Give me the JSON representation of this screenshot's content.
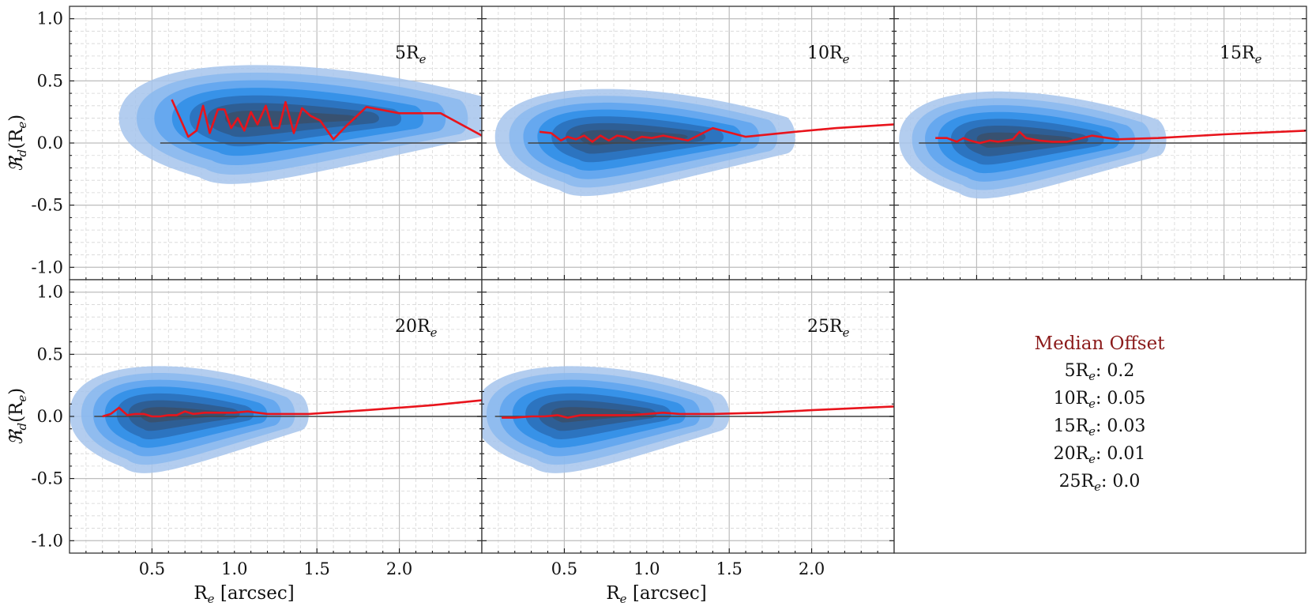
{
  "chart_data": {
    "type": "line",
    "x_ticks": [
      "0.5",
      "1.0",
      "1.5",
      "2.0"
    ],
    "y_ticks": [
      "1.0",
      "0.5",
      "0.0",
      "-0.5",
      "-1.0"
    ],
    "xlabel_main": "R",
    "xlabel_sub": "e",
    "xlabel_unit": " [arcsec]",
    "ylabel_main": "ℜ",
    "ylabel_sub": "d",
    "ylabel_arg_open": "(R",
    "ylabel_arg_sub": "e",
    "ylabel_arg_close": ")",
    "xlim": [
      0.0,
      2.5
    ],
    "ylim": [
      -1.1,
      1.1
    ],
    "grid": true,
    "colors": {
      "median_line": "#e8141c",
      "zero_line": "#444444",
      "kde_levels": [
        "#a6c4ec",
        "#8ab9ee",
        "#5fa5ee",
        "#2f8ee6",
        "#2a6fb8",
        "#2f5a8c",
        "#3a4f6a"
      ]
    },
    "panels": [
      {
        "label": "5R",
        "label_sub": "e",
        "kde": {
          "cx": 1.05,
          "cy": 0.2,
          "sx": 0.35,
          "sy": 0.22,
          "tail_to": 2.5,
          "outer_rx": 0.75,
          "outer_ry": 0.5
        },
        "zero_line_x": [
          0.55,
          2.5
        ],
        "median": {
          "x": [
            0.62,
            0.67,
            0.72,
            0.77,
            0.81,
            0.85,
            0.9,
            0.94,
            0.98,
            1.02,
            1.06,
            1.1,
            1.14,
            1.19,
            1.23,
            1.27,
            1.31,
            1.36,
            1.41,
            1.46,
            1.52,
            1.6,
            1.68,
            1.8,
            2.0,
            2.25,
            2.5
          ],
          "y": [
            0.35,
            0.2,
            0.05,
            0.1,
            0.3,
            0.08,
            0.27,
            0.27,
            0.12,
            0.2,
            0.1,
            0.25,
            0.15,
            0.3,
            0.12,
            0.12,
            0.33,
            0.08,
            0.28,
            0.22,
            0.18,
            0.03,
            0.14,
            0.29,
            0.24,
            0.24,
            0.06
          ]
        }
      },
      {
        "label": "10R",
        "label_sub": "e",
        "kde": {
          "cx": 0.68,
          "cy": 0.05,
          "sx": 0.3,
          "sy": 0.17,
          "tail_to": 1.85,
          "outer_rx": 0.6,
          "outer_ry": 0.45
        },
        "zero_line_x": [
          0.28,
          2.5
        ],
        "median": {
          "x": [
            0.35,
            0.42,
            0.48,
            0.52,
            0.57,
            0.62,
            0.67,
            0.72,
            0.77,
            0.82,
            0.87,
            0.92,
            0.97,
            1.03,
            1.1,
            1.25,
            1.4,
            1.6,
            1.9,
            2.15,
            2.5
          ],
          "y": [
            0.09,
            0.08,
            0.02,
            0.05,
            0.03,
            0.06,
            0.01,
            0.06,
            0.02,
            0.06,
            0.05,
            0.02,
            0.05,
            0.04,
            0.06,
            0.02,
            0.12,
            0.05,
            0.09,
            0.12,
            0.15
          ]
        }
      },
      {
        "label": "15R",
        "label_sub": "e",
        "kde": {
          "cx": 0.58,
          "cy": 0.03,
          "sx": 0.28,
          "sy": 0.16,
          "tail_to": 1.6,
          "outer_rx": 0.55,
          "outer_ry": 0.45
        },
        "zero_line_x": [
          0.15,
          2.5
        ],
        "median": {
          "x": [
            0.25,
            0.32,
            0.38,
            0.42,
            0.46,
            0.52,
            0.58,
            0.63,
            0.68,
            0.72,
            0.76,
            0.8,
            0.88,
            0.96,
            1.05,
            1.2,
            1.35,
            1.6,
            2.0,
            2.5
          ],
          "y": [
            0.04,
            0.04,
            0.01,
            0.04,
            0.02,
            0.0,
            0.02,
            0.01,
            0.02,
            0.03,
            0.09,
            0.04,
            0.02,
            0.01,
            0.01,
            0.06,
            0.03,
            0.04,
            0.07,
            0.1
          ]
        }
      },
      {
        "label": "20R",
        "label_sub": "e",
        "kde": {
          "cx": 0.5,
          "cy": 0.02,
          "sx": 0.27,
          "sy": 0.15,
          "tail_to": 1.4,
          "outer_rx": 0.5,
          "outer_ry": 0.45
        },
        "zero_line_x": [
          0.15,
          2.5
        ],
        "median": {
          "x": [
            0.2,
            0.25,
            0.3,
            0.35,
            0.4,
            0.45,
            0.5,
            0.55,
            0.6,
            0.65,
            0.7,
            0.75,
            0.82,
            0.9,
            1.0,
            1.08,
            1.2,
            1.45,
            1.8,
            2.2,
            2.5
          ],
          "y": [
            0.0,
            0.02,
            0.07,
            0.01,
            0.02,
            0.02,
            0.0,
            0.0,
            0.01,
            0.01,
            0.04,
            0.02,
            0.03,
            0.03,
            0.03,
            0.04,
            0.02,
            0.02,
            0.05,
            0.09,
            0.13
          ]
        }
      },
      {
        "label": "25R",
        "label_sub": "e",
        "kde": {
          "cx": 0.5,
          "cy": 0.02,
          "sx": 0.28,
          "sy": 0.15,
          "tail_to": 1.45,
          "outer_rx": 0.55,
          "outer_ry": 0.45
        },
        "zero_line_x": [
          0.08,
          2.5
        ],
        "median": {
          "x": [
            0.12,
            0.2,
            0.3,
            0.38,
            0.46,
            0.52,
            0.6,
            0.7,
            0.8,
            0.9,
            1.0,
            1.1,
            1.2,
            1.4,
            1.7,
            2.0,
            2.5
          ],
          "y": [
            -0.01,
            -0.01,
            0.0,
            0.0,
            0.01,
            -0.01,
            0.01,
            0.01,
            0.01,
            0.01,
            0.02,
            0.03,
            0.02,
            0.02,
            0.03,
            0.05,
            0.08
          ]
        }
      }
    ],
    "legend": {
      "title": "Median Offset",
      "entries": [
        {
          "main": "5R",
          "sub": "e",
          "value": ": 0.2"
        },
        {
          "main": "10R",
          "sub": "e",
          "value": ": 0.05"
        },
        {
          "main": "15R",
          "sub": "e",
          "value": ": 0.03"
        },
        {
          "main": "20R",
          "sub": "e",
          "value": ": 0.01"
        },
        {
          "main": "25R",
          "sub": "e",
          "value": ": 0.0"
        }
      ]
    }
  }
}
